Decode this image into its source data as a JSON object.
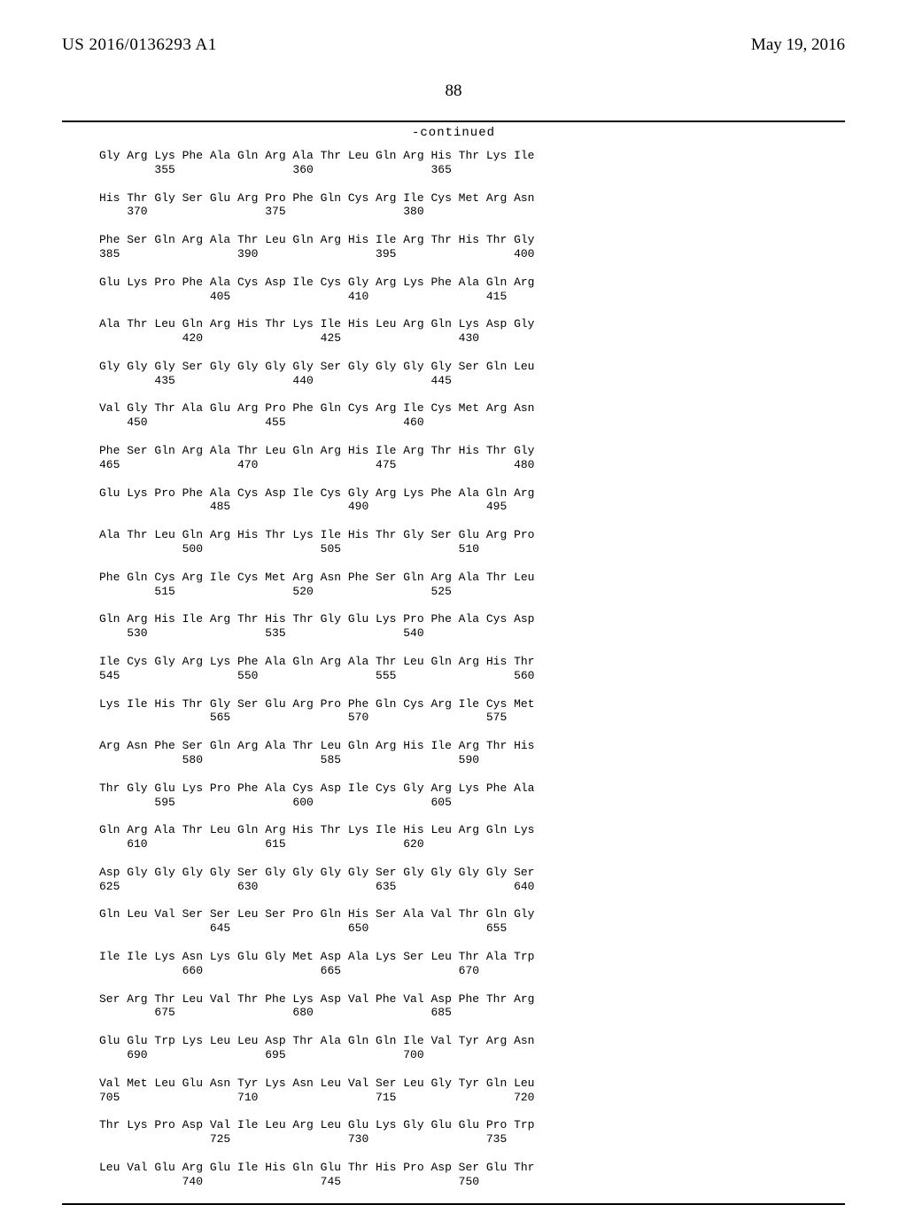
{
  "header": {
    "patent_id": "US 2016/0136293 A1",
    "pub_date": "May 19, 2016"
  },
  "page_number": "88",
  "continued_label": "-continued",
  "sequence": {
    "font_family": "Courier New",
    "font_size_pt": 10,
    "color": "#000000",
    "background": "#ffffff",
    "rows": [
      {
        "aa": "Gly Arg Lys Phe Ala Gln Arg Ala Thr Leu Gln Arg His Thr Lys Ile",
        "num": "        355                 360                 365"
      },
      {
        "aa": "His Thr Gly Ser Glu Arg Pro Phe Gln Cys Arg Ile Cys Met Arg Asn",
        "num": "    370                 375                 380"
      },
      {
        "aa": "Phe Ser Gln Arg Ala Thr Leu Gln Arg His Ile Arg Thr His Thr Gly",
        "num": "385                 390                 395                 400"
      },
      {
        "aa": "Glu Lys Pro Phe Ala Cys Asp Ile Cys Gly Arg Lys Phe Ala Gln Arg",
        "num": "                405                 410                 415"
      },
      {
        "aa": "Ala Thr Leu Gln Arg His Thr Lys Ile His Leu Arg Gln Lys Asp Gly",
        "num": "            420                 425                 430"
      },
      {
        "aa": "Gly Gly Gly Ser Gly Gly Gly Gly Ser Gly Gly Gly Gly Ser Gln Leu",
        "num": "        435                 440                 445"
      },
      {
        "aa": "Val Gly Thr Ala Glu Arg Pro Phe Gln Cys Arg Ile Cys Met Arg Asn",
        "num": "    450                 455                 460"
      },
      {
        "aa": "Phe Ser Gln Arg Ala Thr Leu Gln Arg His Ile Arg Thr His Thr Gly",
        "num": "465                 470                 475                 480"
      },
      {
        "aa": "Glu Lys Pro Phe Ala Cys Asp Ile Cys Gly Arg Lys Phe Ala Gln Arg",
        "num": "                485                 490                 495"
      },
      {
        "aa": "Ala Thr Leu Gln Arg His Thr Lys Ile His Thr Gly Ser Glu Arg Pro",
        "num": "            500                 505                 510"
      },
      {
        "aa": "Phe Gln Cys Arg Ile Cys Met Arg Asn Phe Ser Gln Arg Ala Thr Leu",
        "num": "        515                 520                 525"
      },
      {
        "aa": "Gln Arg His Ile Arg Thr His Thr Gly Glu Lys Pro Phe Ala Cys Asp",
        "num": "    530                 535                 540"
      },
      {
        "aa": "Ile Cys Gly Arg Lys Phe Ala Gln Arg Ala Thr Leu Gln Arg His Thr",
        "num": "545                 550                 555                 560"
      },
      {
        "aa": "Lys Ile His Thr Gly Ser Glu Arg Pro Phe Gln Cys Arg Ile Cys Met",
        "num": "                565                 570                 575"
      },
      {
        "aa": "Arg Asn Phe Ser Gln Arg Ala Thr Leu Gln Arg His Ile Arg Thr His",
        "num": "            580                 585                 590"
      },
      {
        "aa": "Thr Gly Glu Lys Pro Phe Ala Cys Asp Ile Cys Gly Arg Lys Phe Ala",
        "num": "        595                 600                 605"
      },
      {
        "aa": "Gln Arg Ala Thr Leu Gln Arg His Thr Lys Ile His Leu Arg Gln Lys",
        "num": "    610                 615                 620"
      },
      {
        "aa": "Asp Gly Gly Gly Gly Ser Gly Gly Gly Gly Ser Gly Gly Gly Gly Ser",
        "num": "625                 630                 635                 640"
      },
      {
        "aa": "Gln Leu Val Ser Ser Leu Ser Pro Gln His Ser Ala Val Thr Gln Gly",
        "num": "                645                 650                 655"
      },
      {
        "aa": "Ile Ile Lys Asn Lys Glu Gly Met Asp Ala Lys Ser Leu Thr Ala Trp",
        "num": "            660                 665                 670"
      },
      {
        "aa": "Ser Arg Thr Leu Val Thr Phe Lys Asp Val Phe Val Asp Phe Thr Arg",
        "num": "        675                 680                 685"
      },
      {
        "aa": "Glu Glu Trp Lys Leu Leu Asp Thr Ala Gln Gln Ile Val Tyr Arg Asn",
        "num": "    690                 695                 700"
      },
      {
        "aa": "Val Met Leu Glu Asn Tyr Lys Asn Leu Val Ser Leu Gly Tyr Gln Leu",
        "num": "705                 710                 715                 720"
      },
      {
        "aa": "Thr Lys Pro Asp Val Ile Leu Arg Leu Glu Lys Gly Glu Glu Pro Trp",
        "num": "                725                 730                 735"
      },
      {
        "aa": "Leu Val Glu Arg Glu Ile His Gln Glu Thr His Pro Asp Ser Glu Thr",
        "num": "            740                 745                 750"
      }
    ]
  }
}
